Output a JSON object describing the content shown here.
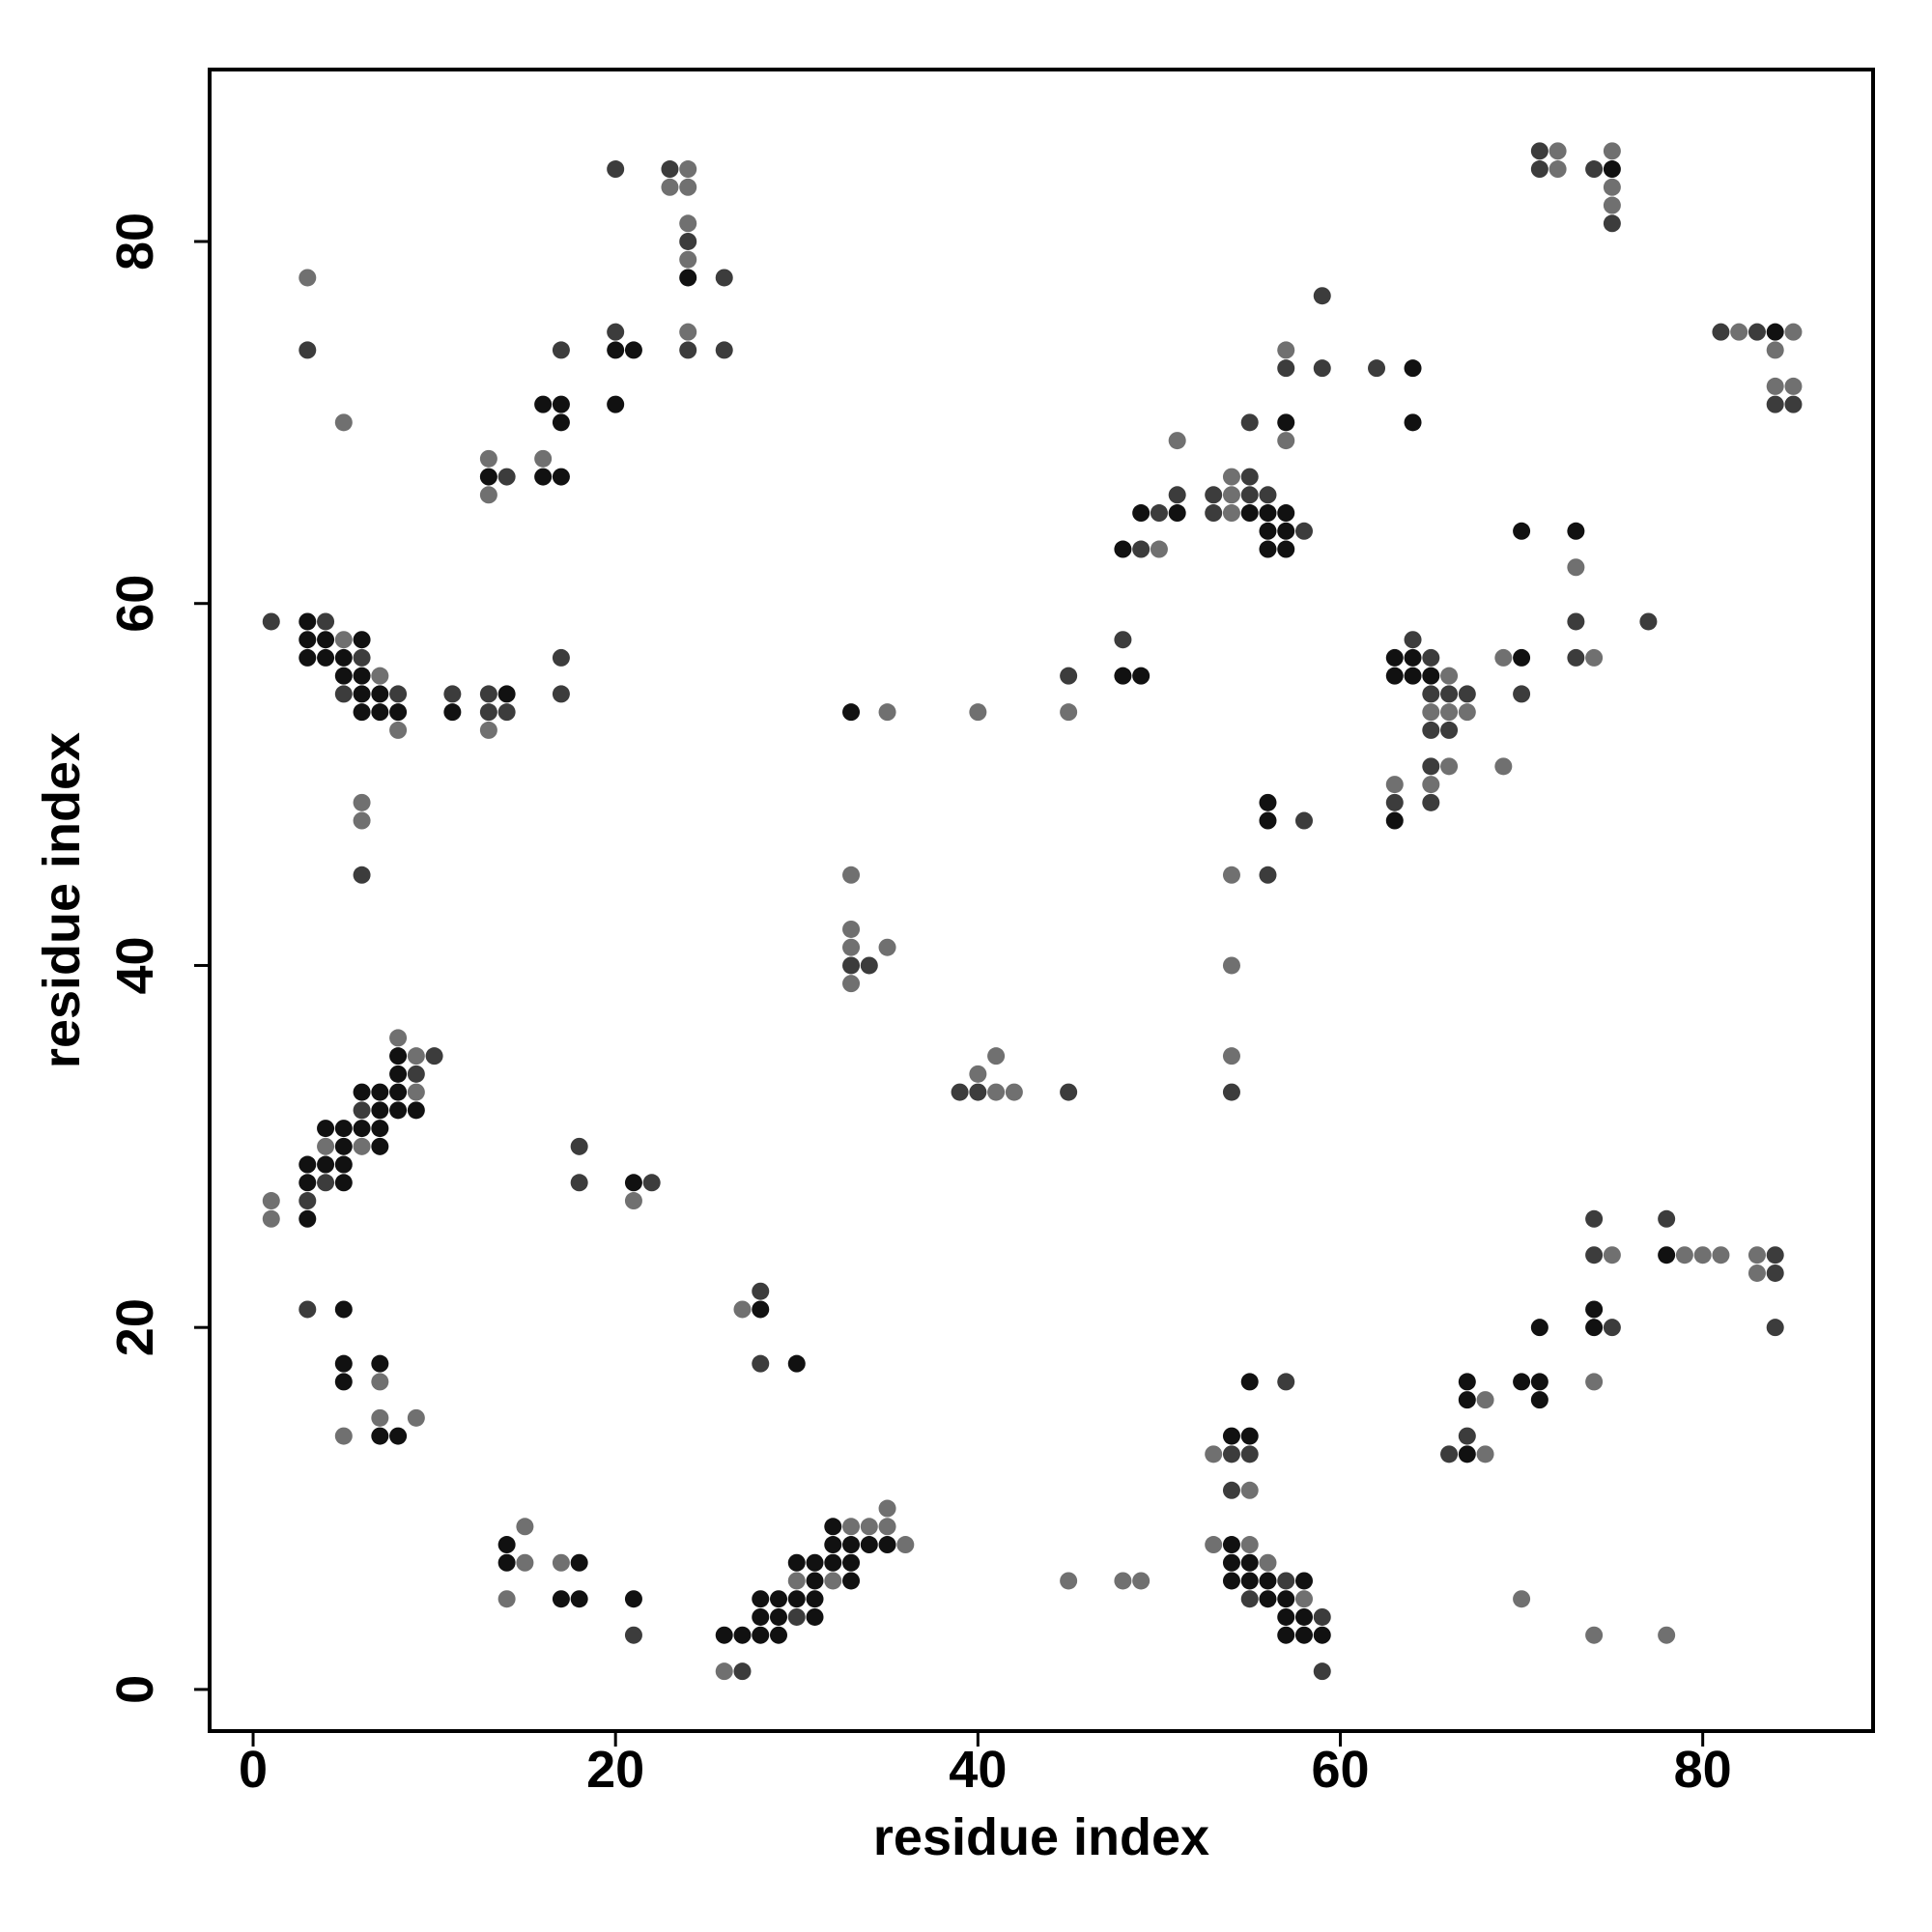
{
  "chart_data": {
    "type": "scatter",
    "xlabel": "residue index",
    "ylabel": "residue index",
    "xlim": [
      -2.4,
      89.4
    ],
    "ylim": [
      -2.3,
      89.5
    ],
    "xticks": [
      0,
      20,
      40,
      60,
      80
    ],
    "yticks": [
      0,
      20,
      40,
      60,
      80
    ],
    "series": [
      {
        "color": "#707070",
        "x": [
          5,
          7,
          8,
          13,
          6,
          6,
          3,
          5,
          13,
          13,
          16,
          24,
          23,
          24,
          24,
          24,
          24,
          1,
          1,
          4,
          6,
          8,
          9,
          9,
          21,
          7,
          5,
          7,
          9,
          15,
          15,
          14,
          17,
          27,
          26,
          30,
          32,
          33,
          34,
          35,
          35,
          36,
          35,
          40,
          33,
          33,
          33,
          35,
          33,
          40,
          41,
          41,
          42,
          45,
          45,
          48,
          49,
          50,
          51,
          54,
          54,
          54,
          57,
          57,
          54,
          54,
          54,
          66,
          65,
          66,
          67,
          66,
          65,
          63,
          69,
          69,
          73,
          74,
          72,
          72,
          75,
          75,
          75,
          82,
          85,
          84,
          84,
          85,
          53,
          55,
          53,
          55,
          56,
          58,
          68,
          68,
          70,
          75,
          74,
          74,
          79,
          80,
          81,
          83,
          83,
          78
        ],
        "values": [
          58,
          56,
          53,
          53,
          49,
          48,
          78,
          70,
          68,
          66,
          68,
          84,
          83,
          83,
          81,
          79,
          75,
          27,
          26,
          30,
          30,
          36,
          35,
          33,
          27,
          17,
          14,
          15,
          15,
          9,
          7,
          5,
          7,
          21,
          1,
          6,
          6,
          9,
          9,
          10,
          9,
          8,
          54,
          54,
          45,
          42,
          41,
          41,
          39,
          34,
          35,
          33,
          33,
          54,
          6,
          6,
          6,
          63,
          69,
          66,
          67,
          65,
          74,
          69,
          45,
          40,
          35,
          56,
          54,
          54,
          54,
          51,
          50,
          50,
          57,
          51,
          62,
          57,
          85,
          84,
          85,
          83,
          82,
          75,
          75,
          74,
          72,
          72,
          13,
          11,
          8,
          8,
          7,
          5,
          13,
          16,
          5,
          24,
          17,
          3,
          24,
          24,
          24,
          24,
          23,
          3
        ]
      },
      {
        "color": "#3c3c3c",
        "x": [
          1,
          4,
          6,
          5,
          8,
          11,
          13,
          13,
          14,
          17,
          17,
          6,
          3,
          14,
          17,
          20,
          20,
          23,
          24,
          26,
          24,
          26,
          4,
          3,
          6,
          10,
          9,
          18,
          18,
          22,
          3,
          21,
          28,
          28,
          27,
          30,
          33,
          34,
          39,
          40,
          45,
          45,
          49,
          50,
          51,
          48,
          53,
          55,
          56,
          55,
          53,
          58,
          55,
          57,
          59,
          59,
          62,
          56,
          54,
          58,
          65,
          64,
          65,
          66,
          67,
          65,
          66,
          65,
          63,
          65,
          70,
          73,
          73,
          77,
          71,
          71,
          74,
          75,
          81,
          83,
          84,
          85,
          54,
          55,
          54,
          57,
          57,
          55,
          59,
          59,
          66,
          67,
          74,
          74,
          75,
          78,
          84,
          84,
          84
        ],
        "values": [
          59,
          59,
          57,
          55,
          55,
          55,
          55,
          54,
          54,
          57,
          55,
          45,
          74,
          67,
          74,
          84,
          75,
          84,
          80,
          78,
          74,
          74,
          28,
          27,
          32,
          35,
          34,
          30,
          28,
          28,
          21,
          3,
          22,
          18,
          1,
          4,
          40,
          40,
          33,
          33,
          56,
          33,
          63,
          65,
          66,
          58,
          66,
          66,
          66,
          67,
          65,
          64,
          70,
          73,
          73,
          77,
          73,
          45,
          33,
          48,
          57,
          58,
          55,
          55,
          55,
          53,
          53,
          51,
          49,
          49,
          55,
          59,
          57,
          59,
          85,
          84,
          84,
          81,
          75,
          75,
          71,
          71,
          13,
          13,
          11,
          17,
          6,
          5,
          4,
          1,
          13,
          14,
          26,
          24,
          20,
          26,
          24,
          23,
          20
        ]
      },
      {
        "color": "#111111",
        "x": [
          3,
          3,
          4,
          6,
          3,
          4,
          5,
          5,
          6,
          6,
          7,
          6,
          7,
          8,
          11,
          14,
          13,
          16,
          17,
          17,
          16,
          17,
          20,
          21,
          20,
          24,
          3,
          4,
          3,
          5,
          3,
          4,
          5,
          5,
          5,
          6,
          7,
          7,
          6,
          7,
          7,
          8,
          8,
          8,
          8,
          9,
          21,
          5,
          5,
          7,
          5,
          7,
          8,
          14,
          14,
          18,
          17,
          18,
          21,
          28,
          30,
          26,
          27,
          28,
          29,
          28,
          29,
          30,
          28,
          29,
          31,
          30,
          31,
          31,
          31,
          32,
          32,
          33,
          34,
          35,
          32,
          33,
          33,
          33,
          48,
          49,
          51,
          48,
          49,
          55,
          56,
          57,
          56,
          57,
          57,
          56,
          57,
          64,
          64,
          56,
          56,
          63,
          64,
          63,
          64,
          65,
          63,
          70,
          70,
          73,
          75,
          84,
          54,
          55,
          55,
          54,
          54,
          55,
          54,
          55,
          56,
          58,
          56,
          57,
          57,
          58,
          57,
          58,
          59,
          67,
          67,
          67,
          70,
          71,
          71,
          71,
          74,
          74,
          78
        ],
        "values": [
          59,
          58,
          58,
          58,
          57,
          57,
          57,
          56,
          56,
          55,
          55,
          54,
          54,
          54,
          54,
          55,
          67,
          71,
          71,
          70,
          67,
          67,
          74,
          74,
          71,
          78,
          29,
          29,
          28,
          28,
          26,
          31,
          31,
          30,
          29,
          33,
          33,
          32,
          31,
          31,
          30,
          35,
          34,
          33,
          32,
          32,
          28,
          21,
          18,
          18,
          17,
          14,
          14,
          8,
          7,
          7,
          5,
          5,
          5,
          21,
          18,
          3,
          3,
          3,
          3,
          5,
          5,
          5,
          4,
          4,
          4,
          7,
          7,
          6,
          5,
          9,
          8,
          8,
          8,
          8,
          7,
          7,
          6,
          54,
          63,
          65,
          65,
          56,
          56,
          65,
          64,
          64,
          63,
          63,
          65,
          65,
          70,
          73,
          70,
          49,
          48,
          57,
          57,
          56,
          56,
          56,
          48,
          57,
          64,
          64,
          84,
          75,
          14,
          14,
          17,
          8,
          7,
          7,
          6,
          6,
          6,
          6,
          5,
          5,
          4,
          4,
          3,
          3,
          3,
          13,
          16,
          17,
          17,
          17,
          16,
          20,
          21,
          20,
          24
        ]
      }
    ]
  }
}
